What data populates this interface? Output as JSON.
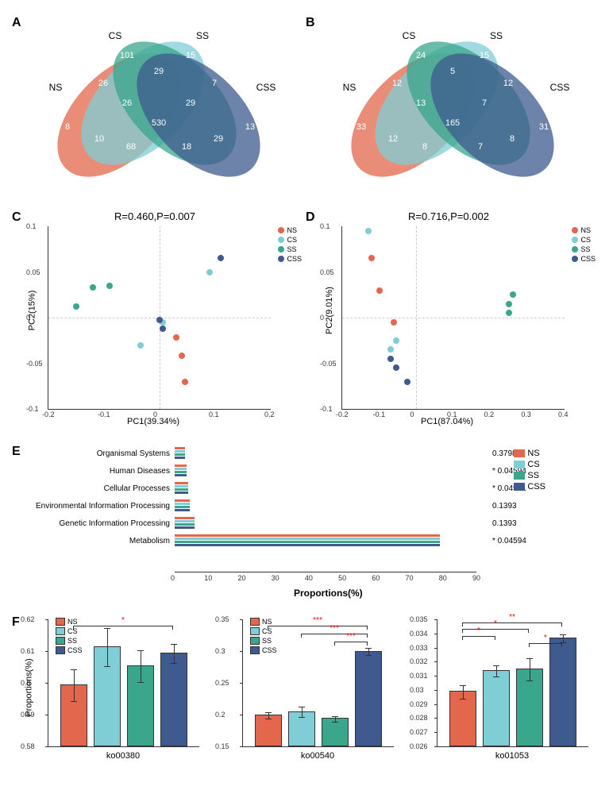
{
  "groups": {
    "names": [
      "NS",
      "CS",
      "SS",
      "CSS"
    ],
    "colors": [
      "#e2674c",
      "#7fcdd5",
      "#3aa68c",
      "#3e5a8e"
    ]
  },
  "panelA": {
    "label": "A",
    "numbers": {
      "NS_only": "8",
      "CS_only": "101",
      "SS_only": "15",
      "CSS_only": "13",
      "NS_CS": "26",
      "CS_SS": "29",
      "SS_CSS": "7",
      "NS_CSS": "13",
      "NS_SS": "10",
      "CS_CSS": "29",
      "NS_CS_SS": "26",
      "CS_SS_CSS": "29",
      "NS_SS_CSS": "68",
      "NS_CS_CSS": "18",
      "all": "530"
    }
  },
  "panelB": {
    "label": "B",
    "numbers": {
      "NS_only": "33",
      "CS_only": "24",
      "SS_only": "15",
      "CSS_only": "31",
      "NS_CS": "12",
      "CS_SS": "5",
      "SS_CSS": "12",
      "NS_CSS": "15",
      "NS_SS": "12",
      "CS_CSS": "8",
      "NS_CS_SS": "13",
      "CS_SS_CSS": "7",
      "NS_SS_CSS": "8",
      "NS_CS_CSS": "7",
      "all": "165"
    }
  },
  "panelC": {
    "label": "C",
    "title": "R=0.460,P=0.007",
    "xlabel": "PC1(39.34%)",
    "ylabel": "PC2(15%)",
    "xlim": [
      -0.2,
      0.2
    ],
    "ylim": [
      -0.1,
      0.1
    ],
    "xticks": [
      -0.2,
      -0.1,
      0,
      0.1,
      0.2
    ],
    "yticks": [
      -0.1,
      -0.05,
      0,
      0.05,
      0.1
    ],
    "points": [
      {
        "x": 0.045,
        "y": -0.07,
        "g": 0
      },
      {
        "x": 0.04,
        "y": -0.042,
        "g": 0
      },
      {
        "x": 0.03,
        "y": -0.022,
        "g": 0
      },
      {
        "x": -0.035,
        "y": -0.03,
        "g": 1
      },
      {
        "x": 0.09,
        "y": 0.05,
        "g": 1
      },
      {
        "x": 0.005,
        "y": -0.005,
        "g": 1
      },
      {
        "x": -0.15,
        "y": 0.012,
        "g": 2
      },
      {
        "x": -0.12,
        "y": 0.033,
        "g": 2
      },
      {
        "x": -0.09,
        "y": 0.035,
        "g": 2
      },
      {
        "x": 0.0,
        "y": -0.003,
        "g": 3
      },
      {
        "x": 0.11,
        "y": 0.065,
        "g": 3
      },
      {
        "x": 0.005,
        "y": -0.012,
        "g": 3
      }
    ]
  },
  "panelD": {
    "label": "D",
    "title": "R=0.716,P=0.002",
    "xlabel": "PC1(87.04%)",
    "ylabel": "PC2(9.01%)",
    "xlim": [
      -0.2,
      0.4
    ],
    "ylim": [
      -0.1,
      0.1
    ],
    "xticks": [
      -0.2,
      -0.1,
      0,
      0.1,
      0.2,
      0.3,
      0.4
    ],
    "yticks": [
      -0.1,
      -0.05,
      0,
      0.05,
      0.1
    ],
    "points": [
      {
        "x": -0.1,
        "y": 0.03,
        "g": 0
      },
      {
        "x": -0.12,
        "y": 0.065,
        "g": 0
      },
      {
        "x": -0.06,
        "y": -0.005,
        "g": 0
      },
      {
        "x": -0.07,
        "y": -0.035,
        "g": 1
      },
      {
        "x": -0.055,
        "y": -0.025,
        "g": 1
      },
      {
        "x": -0.13,
        "y": 0.095,
        "g": 1
      },
      {
        "x": 0.25,
        "y": 0.005,
        "g": 2
      },
      {
        "x": 0.26,
        "y": 0.025,
        "g": 2
      },
      {
        "x": 0.25,
        "y": 0.015,
        "g": 2
      },
      {
        "x": -0.055,
        "y": -0.055,
        "g": 3
      },
      {
        "x": -0.025,
        "y": -0.07,
        "g": 3
      },
      {
        "x": -0.07,
        "y": -0.045,
        "g": 3
      }
    ]
  },
  "panelE": {
    "label": "E",
    "xlabel": "Proportions(%)",
    "xlim": [
      0,
      90
    ],
    "xticks": [
      0,
      10,
      20,
      30,
      40,
      50,
      60,
      70,
      80,
      90
    ],
    "categories": [
      {
        "name": "Organismal Systems",
        "vals": [
          3,
          3,
          3,
          3
        ],
        "p": "0.3798",
        "sig": ""
      },
      {
        "name": "Human Diseases",
        "vals": [
          3.5,
          3.5,
          3.5,
          3.5
        ],
        "p": "0.04594",
        "sig": "*"
      },
      {
        "name": "Cellular Processes",
        "vals": [
          4,
          4,
          4,
          4
        ],
        "p": "0.04961",
        "sig": "*"
      },
      {
        "name": "Environmental Information Processing",
        "vals": [
          4.5,
          4.5,
          4.5,
          4.5
        ],
        "p": "0.1393",
        "sig": ""
      },
      {
        "name": "Genetic Information Processing",
        "vals": [
          6,
          6,
          6,
          6
        ],
        "p": "0.1393",
        "sig": ""
      },
      {
        "name": "Metabolism",
        "vals": [
          79,
          79,
          79,
          79
        ],
        "p": "0.04594",
        "sig": "*"
      }
    ]
  },
  "panelF": {
    "label": "F",
    "ylabel": "Proportions(%)",
    "charts": [
      {
        "xlabel": "ko00380",
        "ylim": [
          0.58,
          0.62
        ],
        "yticks": [
          0.58,
          0.59,
          0.6,
          0.61,
          0.62
        ],
        "vals": [
          0.599,
          0.611,
          0.605,
          0.609
        ],
        "err": [
          0.005,
          0.006,
          0.005,
          0.003
        ],
        "sig": [
          {
            "from": 0,
            "to": 3,
            "stars": "*",
            "h": 0.618
          }
        ]
      },
      {
        "xlabel": "ko00540",
        "ylim": [
          0.15,
          0.35
        ],
        "yticks": [
          0.15,
          0.2,
          0.25,
          0.3,
          0.35
        ],
        "vals": [
          0.198,
          0.203,
          0.192,
          0.298
        ],
        "err": [
          0.005,
          0.008,
          0.004,
          0.006
        ],
        "sig": [
          {
            "from": 0,
            "to": 3,
            "stars": "***",
            "h": 0.34
          },
          {
            "from": 1,
            "to": 3,
            "stars": "***",
            "h": 0.328
          },
          {
            "from": 2,
            "to": 3,
            "stars": "***",
            "h": 0.315
          }
        ]
      },
      {
        "xlabel": "ko01053",
        "ylim": [
          0.026,
          0.035
        ],
        "yticks": [
          0.026,
          0.027,
          0.028,
          0.029,
          0.03,
          0.031,
          0.032,
          0.033,
          0.034,
          0.035
        ],
        "vals": [
          0.0298,
          0.0313,
          0.0314,
          0.0336
        ],
        "err": [
          0.0005,
          0.0004,
          0.0008,
          0.0003
        ],
        "sig": [
          {
            "from": 0,
            "to": 3,
            "stars": "**",
            "h": 0.0348
          },
          {
            "from": 0,
            "to": 2,
            "stars": "*",
            "h": 0.0343
          },
          {
            "from": 0,
            "to": 1,
            "stars": "*",
            "h": 0.0338
          },
          {
            "from": 2,
            "to": 3,
            "stars": "*",
            "h": 0.0333
          }
        ]
      }
    ]
  }
}
